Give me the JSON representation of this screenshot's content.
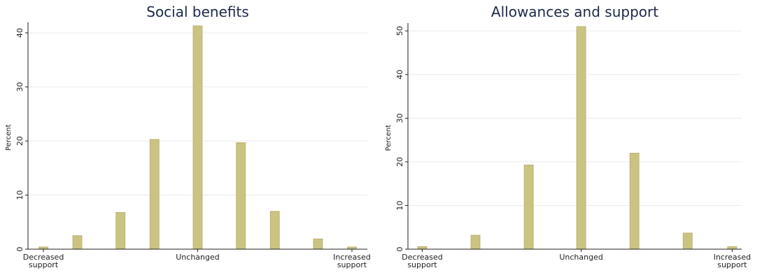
{
  "chart_data": [
    {
      "type": "bar",
      "title": "Social benefits",
      "y_label": "Percent",
      "color": "#cbc382",
      "x": [
        -1,
        -0.78,
        -0.5,
        -0.28,
        0,
        0.28,
        0.5,
        0.78,
        1
      ],
      "values": [
        0.4,
        2.5,
        6.8,
        20.3,
        41.3,
        19.7,
        7.0,
        1.9,
        0.4
      ],
      "xlim": [
        -1.1,
        1.1
      ],
      "xticks": [
        {
          "value": -1,
          "label": "Decreased support"
        },
        {
          "value": 0,
          "label": "Unchanged"
        },
        {
          "value": 1,
          "label": "Increased support"
        }
      ],
      "ylim": [
        0,
        41.3
      ],
      "yticks": [
        0,
        10,
        20,
        30,
        40
      ],
      "grid": true
    },
    {
      "type": "bar",
      "title": "Allowances and support",
      "y_label": "Percent",
      "color": "#cbc382",
      "x": [
        -1,
        -0.665,
        -0.33,
        0,
        0.335,
        0.67,
        0.95
      ],
      "values": [
        0.6,
        3.2,
        19.3,
        51,
        22.0,
        3.7,
        0.6
      ],
      "xlim": [
        -1.09,
        1.01
      ],
      "xticks": [
        {
          "value": -1,
          "label": "Decreased support"
        },
        {
          "value": 0,
          "label": "Unchanged"
        },
        {
          "value": 0.95,
          "label": "Increased support"
        }
      ],
      "ylim": [
        0,
        51
      ],
      "yticks": [
        0,
        10,
        20,
        30,
        40,
        50
      ],
      "grid": true
    }
  ]
}
